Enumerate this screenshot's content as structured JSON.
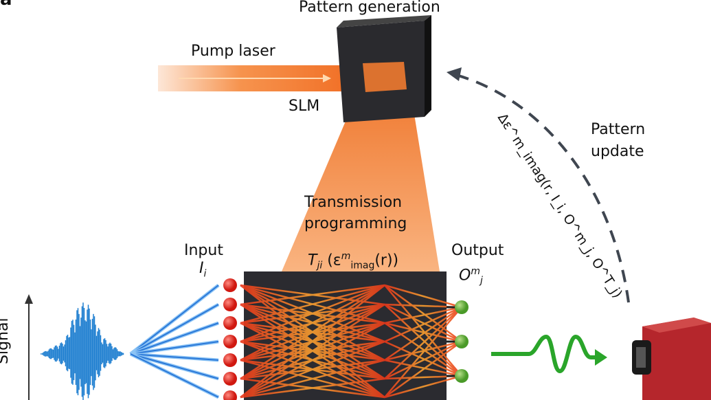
{
  "panel_label": "a",
  "labels": {
    "pattern_generation": "Pattern generation",
    "pump_laser": "Pump laser",
    "slm": "SLM",
    "pattern_update_line1": "Pattern",
    "pattern_update_line2": "update",
    "transmission_line1": "Transmission",
    "transmission_line2": "programming",
    "input": "Input",
    "output": "Output",
    "signal": "Signal"
  },
  "math": {
    "input_symbol": "I",
    "input_sub": "i",
    "transfer": "T",
    "transfer_sub": "ji",
    "transfer_arg_open": " (ε",
    "transfer_arg_sup": "m",
    "transfer_arg_sub": "imag",
    "transfer_arg_close": "(r))",
    "output_symbol": "O",
    "output_sup": "m",
    "output_sub": "j",
    "update_formula": "Δε^m_imag(r, I_i, O^m_j, O^T_j)"
  },
  "colors": {
    "laser": "#f5873a",
    "slm": "#1e1e22",
    "chip": "#2b2b30",
    "input_node": "#e0231c",
    "output_node": "#5aa832",
    "signal_wave": "#1f7fd0",
    "output_wave": "#2aa52a",
    "camera": "#b5262c",
    "dashed_arrow": "#3f4650"
  }
}
